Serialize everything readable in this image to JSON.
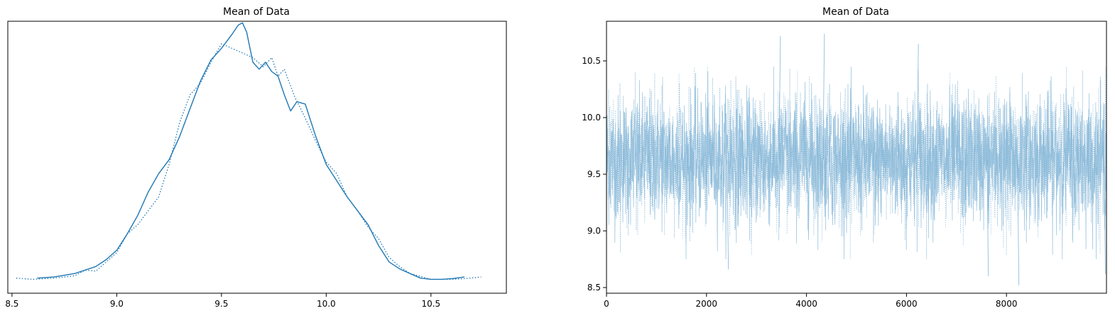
{
  "chart_data": [
    {
      "type": "line",
      "title": "Mean of Data",
      "xlabel": "",
      "ylabel": "",
      "xlim": [
        8.48,
        10.86
      ],
      "ylim": [
        0,
        1.08
      ],
      "x_ticks": [
        "8.5",
        "9.0",
        "9.5",
        "10.0",
        "10.5"
      ],
      "y_ticks_visible": false,
      "grid": false,
      "color": "#1f77b4",
      "series": [
        {
          "style": "solid",
          "x": [
            8.62,
            8.7,
            8.8,
            8.9,
            8.95,
            9.0,
            9.05,
            9.1,
            9.15,
            9.2,
            9.25,
            9.3,
            9.35,
            9.4,
            9.45,
            9.5,
            9.55,
            9.58,
            9.6,
            9.62,
            9.65,
            9.68,
            9.71,
            9.74,
            9.77,
            9.8,
            9.83,
            9.86,
            9.9,
            9.95,
            10.0,
            10.05,
            10.1,
            10.15,
            10.2,
            10.25,
            10.3,
            10.35,
            10.4,
            10.45,
            10.5,
            10.55,
            10.6,
            10.66
          ],
          "y": [
            0.01,
            0.015,
            0.03,
            0.06,
            0.09,
            0.13,
            0.2,
            0.28,
            0.38,
            0.46,
            0.52,
            0.62,
            0.74,
            0.86,
            0.95,
            1.0,
            1.06,
            1.1,
            1.11,
            1.07,
            0.94,
            0.91,
            0.94,
            0.9,
            0.88,
            0.8,
            0.73,
            0.77,
            0.76,
            0.62,
            0.5,
            0.43,
            0.36,
            0.3,
            0.24,
            0.15,
            0.08,
            0.05,
            0.03,
            0.01,
            0.005,
            0.005,
            0.008,
            0.015
          ]
        },
        {
          "style": "dotted",
          "x": [
            8.52,
            8.6,
            8.7,
            8.8,
            8.85,
            8.9,
            9.0,
            9.05,
            9.1,
            9.15,
            9.2,
            9.25,
            9.3,
            9.35,
            9.4,
            9.45,
            9.5,
            9.55,
            9.6,
            9.65,
            9.7,
            9.74,
            9.77,
            9.8,
            9.85,
            9.9,
            9.95,
            10.0,
            10.05,
            10.1,
            10.15,
            10.2,
            10.25,
            10.3,
            10.35,
            10.4,
            10.5,
            10.6,
            10.66,
            10.74
          ],
          "y": [
            0.01,
            0.005,
            0.01,
            0.02,
            0.045,
            0.04,
            0.12,
            0.2,
            0.24,
            0.3,
            0.36,
            0.5,
            0.68,
            0.8,
            0.85,
            0.94,
            1.02,
            1.0,
            0.98,
            0.96,
            0.92,
            0.96,
            0.88,
            0.91,
            0.79,
            0.7,
            0.6,
            0.51,
            0.46,
            0.36,
            0.3,
            0.23,
            0.18,
            0.1,
            0.06,
            0.03,
            0.005,
            0.005,
            0.008,
            0.015
          ]
        }
      ]
    },
    {
      "type": "line",
      "title": "Mean of Data",
      "xlabel": "",
      "ylabel": "",
      "xlim": [
        0,
        10000
      ],
      "ylim": [
        8.45,
        10.85
      ],
      "x_ticks": [
        "0",
        "2000",
        "4000",
        "6000",
        "8000"
      ],
      "y_ticks": [
        "8.5",
        "9.0",
        "9.5",
        "10.0",
        "10.5"
      ],
      "grid": false,
      "color": "#7fb3d5",
      "series_summary": {
        "description_of_values": "two MCMC chains of 10000 draws each",
        "center": 9.63,
        "spread": 0.28,
        "n": 10000,
        "extremes": [
          {
            "x": 3450,
            "y": 10.72
          },
          {
            "x": 4330,
            "y": 10.74
          },
          {
            "x": 6210,
            "y": 10.65
          },
          {
            "x": 7610,
            "y": 8.6
          },
          {
            "x": 8220,
            "y": 8.52
          },
          {
            "x": 2410,
            "y": 8.66
          },
          {
            "x": 9950,
            "y": 8.62
          }
        ]
      }
    }
  ]
}
